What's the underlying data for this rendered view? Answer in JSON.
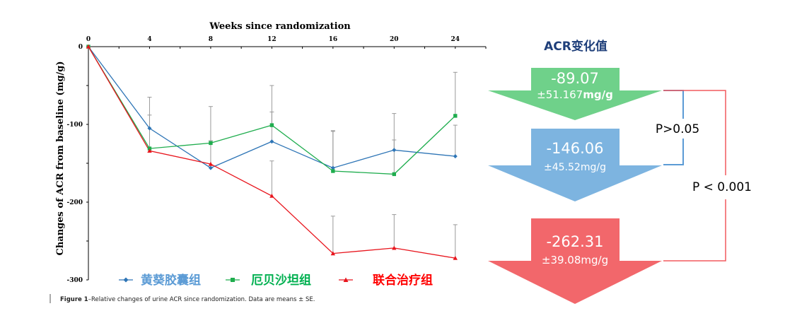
{
  "chart_data": {
    "type": "line",
    "title": "Weeks since randomization",
    "xlabel": "Weeks since randomization",
    "ylabel": "Changes of ACR from baseline  (mg/g)",
    "x": [
      0,
      4,
      8,
      12,
      16,
      20,
      24
    ],
    "xlim": [
      0,
      26
    ],
    "ylim": [
      -300,
      0
    ],
    "x_tick_labels": [
      "0",
      "4",
      "8",
      "12",
      "16",
      "20",
      "24"
    ],
    "y_ticks": [
      0,
      -100,
      -200,
      -300
    ],
    "y_tick_labels": [
      "0",
      "-100",
      "-200",
      "-300"
    ],
    "grid": false,
    "legend_placement": "bottom",
    "series": [
      {
        "name": "黄葵胶囊组",
        "color": "#2e75b6",
        "marker": "diamond",
        "values": [
          0,
          -105,
          -156,
          -122,
          -156,
          -133,
          -141
        ],
        "err": [
          0,
          40,
          35,
          38,
          48,
          47,
          40
        ]
      },
      {
        "name": "厄贝沙坦组",
        "color": "#1fad4e",
        "marker": "square",
        "values": [
          0,
          -131,
          -124,
          -101,
          -160,
          -164,
          -89
        ],
        "err": [
          0,
          43,
          47,
          51,
          51,
          44,
          56
        ]
      },
      {
        "name": "联合治疗组",
        "color": "#e8151d",
        "marker": "triangle",
        "values": [
          0,
          -134,
          -151,
          -192,
          -266,
          -259,
          -272
        ],
        "err": [
          0,
          0,
          0,
          45,
          48,
          43,
          43
        ]
      }
    ],
    "legend_colors": [
      "#5b9bd5",
      "#00b050",
      "#ff0000"
    ]
  },
  "caption": {
    "bold": "Figure 1",
    "text": "–Relative changes of urine ACR since randomization. Data are means ± SE."
  },
  "panel": {
    "title": "ACR变化值",
    "title_color": "#1f3f7a",
    "arrows": [
      {
        "value": "-89.07",
        "sd": "±51.167",
        "unit": "mg/g",
        "color": "#6fd18a"
      },
      {
        "value": "-146.06",
        "sd": "±45.52",
        "unit": "mg/g",
        "color": "#7db4e0"
      },
      {
        "value": "-262.31",
        "sd": "±39.08",
        "unit": "mg/g",
        "color": "#f2676b"
      }
    ],
    "comparisons": [
      {
        "label": "P>0.05",
        "color": "#5b9bd5"
      },
      {
        "label": "P < 0.001",
        "color": "#f25a5f"
      }
    ]
  }
}
